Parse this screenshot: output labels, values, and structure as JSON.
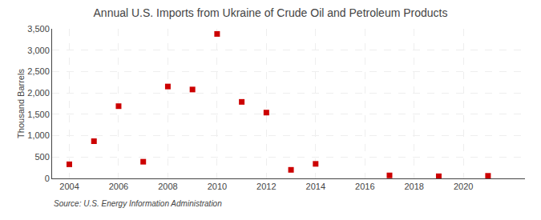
{
  "chart_data": {
    "type": "scatter",
    "title": "Annual U.S. Imports from Ukraine of Crude Oil and Petroleum Products",
    "ylabel": "Thousand Barrels",
    "annotations": [
      "Source: U.S. Energy Information Administration"
    ],
    "x": [
      2004,
      2005,
      2006,
      2007,
      2008,
      2009,
      2010,
      2011,
      2012,
      2013,
      2014,
      2017,
      2019,
      2021
    ],
    "values": [
      330,
      870,
      1690,
      390,
      2150,
      2080,
      3380,
      1790,
      1540,
      200,
      340,
      70,
      50,
      60
    ],
    "color": "#cc0000",
    "marker": "square",
    "xlim": [
      2003.3,
      2022.5
    ],
    "xticks": [
      2004,
      2006,
      2008,
      2010,
      2012,
      2014,
      2016,
      2018,
      2020
    ],
    "ylim": [
      0,
      3500
    ],
    "yticks": [
      0,
      500,
      {
        "value": 1000,
        "label": "1,000"
      },
      {
        "value": 1500,
        "label": "1,500"
      },
      {
        "value": 2000,
        "label": "2,000"
      },
      {
        "value": 2500,
        "label": "2,500"
      },
      {
        "value": 3000,
        "label": "3,000"
      },
      {
        "value": 3500,
        "label": "3,500"
      }
    ],
    "grid": true
  }
}
